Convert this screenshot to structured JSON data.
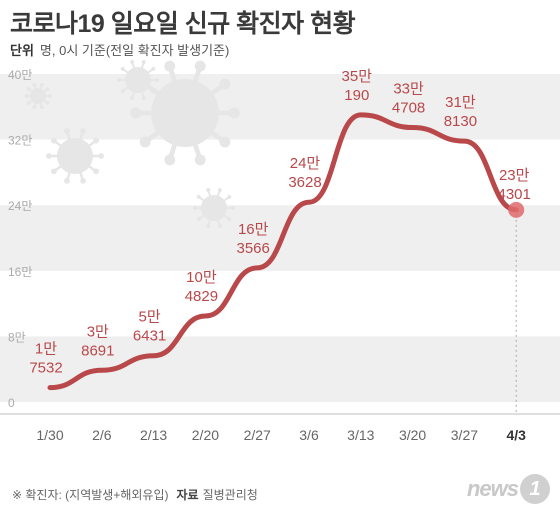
{
  "title": "코로나19 일요일 신규 확진자 현황",
  "subtitle": {
    "unit_label": "단위",
    "unit_text": "명, 0시 기준(전일 확진자 발생기준)"
  },
  "footer": {
    "note": "※ 확진자: (지역발생+해외유입)",
    "source_label": "자료",
    "source": "질병관리청"
  },
  "logo": {
    "text": "news",
    "badge": "1"
  },
  "colors": {
    "line": "#b9484a",
    "label": "#b9484a",
    "marker": "#e06a6c",
    "band": "#efefef",
    "axis_text": "#aaaaaa",
    "x_text": "#666666",
    "virus": "#e6e6e6"
  },
  "icons": [
    "virus-icon",
    "virus-icon",
    "virus-icon",
    "virus-icon",
    "virus-icon"
  ],
  "chart_data": {
    "type": "line",
    "categories": [
      "1/30",
      "2/6",
      "2/13",
      "2/20",
      "2/27",
      "3/6",
      "3/13",
      "3/20",
      "3/27",
      "4/3"
    ],
    "values": [
      17532,
      38691,
      56431,
      104829,
      163566,
      243628,
      350190,
      334708,
      318130,
      234301
    ],
    "data_labels": [
      [
        "1만",
        "7532"
      ],
      [
        "3만",
        "8691"
      ],
      [
        "5만",
        "6431"
      ],
      [
        "10만",
        "4829"
      ],
      [
        "16만",
        "3566"
      ],
      [
        "24만",
        "3628"
      ],
      [
        "35만",
        "190"
      ],
      [
        "33만",
        "4708"
      ],
      [
        "31만",
        "8130"
      ],
      [
        "23만",
        "4301"
      ]
    ],
    "yticks": [
      0,
      80000,
      160000,
      240000,
      320000,
      400000
    ],
    "ytick_labels": [
      "0",
      "8만",
      "16만",
      "24만",
      "32만",
      "40만"
    ],
    "ylim": [
      0,
      400000
    ],
    "highlight_index": 9,
    "grid": "alternating bands"
  }
}
